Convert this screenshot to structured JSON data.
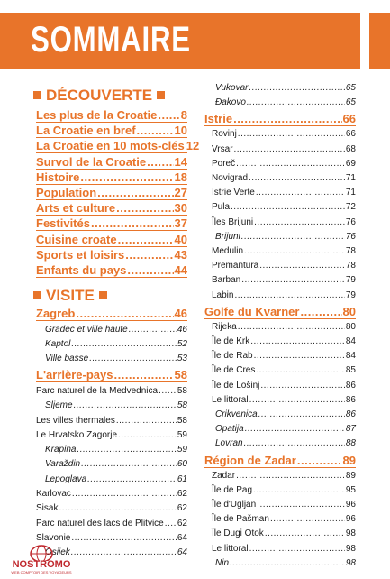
{
  "title": "SOMMAIRE",
  "colors": {
    "accent": "#e8742a",
    "logo": "#c0282d"
  },
  "left": {
    "decouverte_heading": "DÉCOUVERTE",
    "decouverte": [
      {
        "label": "Les plus de la Croatie",
        "page": "8"
      },
      {
        "label": "La Croatie en bref",
        "page": "10"
      },
      {
        "label": "La Croatie en 10 mots-clés",
        "page": "12"
      },
      {
        "label": "Survol de la Croatie",
        "page": "14"
      },
      {
        "label": "Histoire",
        "page": "18"
      },
      {
        "label": "Population",
        "page": "27"
      },
      {
        "label": "Arts et culture",
        "page": "30"
      },
      {
        "label": "Festivités",
        "page": "37"
      },
      {
        "label": "Cuisine croate",
        "page": "40"
      },
      {
        "label": "Sports et loisirs",
        "page": "43"
      },
      {
        "label": "Enfants du pays",
        "page": "44"
      }
    ],
    "visite_heading": "VISITE",
    "visite": [
      {
        "type": "major",
        "label": "Zagreb",
        "page": "46"
      },
      {
        "type": "sub",
        "label": "Gradec et ville haute",
        "page": "46"
      },
      {
        "type": "sub",
        "label": "Kaptol",
        "page": "52"
      },
      {
        "type": "sub",
        "label": "Ville basse",
        "page": "53"
      },
      {
        "type": "major",
        "label": "L'arrière-pays",
        "page": "58"
      },
      {
        "type": "normal",
        "label": "Parc naturel de la Medvednica",
        "page": "58"
      },
      {
        "type": "sub",
        "label": "Sljeme",
        "page": "58"
      },
      {
        "type": "normal",
        "label": "Les villes thermales",
        "page": "58"
      },
      {
        "type": "normal",
        "label": "Le Hrvatsko Zagorje",
        "page": "59"
      },
      {
        "type": "sub",
        "label": "Krapina",
        "page": "59"
      },
      {
        "type": "sub",
        "label": "Varaždin",
        "page": "60"
      },
      {
        "type": "sub",
        "label": "Lepoglava",
        "page": "61"
      },
      {
        "type": "normal",
        "label": "Karlovac",
        "page": "62"
      },
      {
        "type": "normal",
        "label": "Sisak",
        "page": "62"
      },
      {
        "type": "normal",
        "label": "Parc naturel des lacs de Plitvice",
        "page": "62"
      },
      {
        "type": "normal",
        "label": "Slavonie",
        "page": "64"
      },
      {
        "type": "sub",
        "label": "Osijek",
        "page": "64"
      }
    ]
  },
  "right": [
    {
      "type": "sub",
      "label": "Vukovar",
      "page": "65"
    },
    {
      "type": "sub",
      "label": "Đakovo",
      "page": "65"
    },
    {
      "type": "major",
      "label": "Istrie",
      "page": "66"
    },
    {
      "type": "normal",
      "label": "Rovinj",
      "page": "66"
    },
    {
      "type": "normal",
      "label": "Vrsar",
      "page": "68"
    },
    {
      "type": "normal",
      "label": "Poreč",
      "page": "69"
    },
    {
      "type": "normal",
      "label": "Novigrad",
      "page": "71"
    },
    {
      "type": "normal",
      "label": "Istrie Verte",
      "page": "71"
    },
    {
      "type": "normal",
      "label": "Pula",
      "page": "72"
    },
    {
      "type": "normal",
      "label": "Îles Brijuni",
      "page": "76"
    },
    {
      "type": "sub",
      "label": "Brijuni",
      "page": "76"
    },
    {
      "type": "normal",
      "label": "Medulin",
      "page": "78"
    },
    {
      "type": "normal",
      "label": "Premantura",
      "page": "78"
    },
    {
      "type": "normal",
      "label": "Barban",
      "page": "79"
    },
    {
      "type": "normal",
      "label": "Labin",
      "page": "79"
    },
    {
      "type": "major",
      "label": "Golfe du Kvarner",
      "page": "80"
    },
    {
      "type": "normal",
      "label": "Rijeka",
      "page": "80"
    },
    {
      "type": "normal",
      "label": "Île de Krk",
      "page": "84"
    },
    {
      "type": "normal",
      "label": "Île de Rab",
      "page": "84"
    },
    {
      "type": "normal",
      "label": "Île de Cres",
      "page": "85"
    },
    {
      "type": "normal",
      "label": "Île de Lošinj",
      "page": "86"
    },
    {
      "type": "normal",
      "label": "Le littoral",
      "page": "86"
    },
    {
      "type": "sub",
      "label": "Crikvenica",
      "page": "86"
    },
    {
      "type": "sub",
      "label": "Opatija",
      "page": "87"
    },
    {
      "type": "sub",
      "label": "Lovran",
      "page": "88"
    },
    {
      "type": "major",
      "label": "Région de Zadar",
      "page": "89"
    },
    {
      "type": "normal",
      "label": "Zadar",
      "page": "89"
    },
    {
      "type": "normal",
      "label": "Île de Pag",
      "page": "95"
    },
    {
      "type": "normal",
      "label": "Île d'Ugljan",
      "page": "96"
    },
    {
      "type": "normal",
      "label": "Île de Pašman",
      "page": "96"
    },
    {
      "type": "normal",
      "label": "Île Dugi Otok",
      "page": "98"
    },
    {
      "type": "normal",
      "label": "Le littoral",
      "page": "98"
    },
    {
      "type": "sub",
      "label": "Nin",
      "page": "98"
    }
  ],
  "logo": {
    "name": "NOSTROMO",
    "tagline": "WEB COMPTOIR DES VOYAGEURS"
  }
}
